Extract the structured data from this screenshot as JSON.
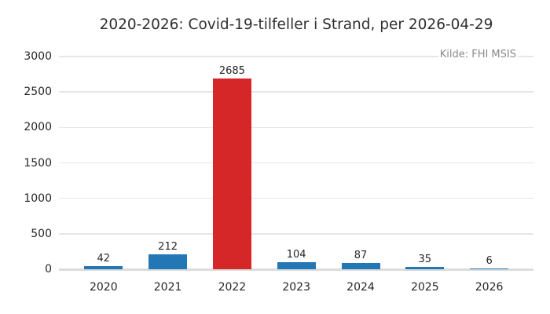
{
  "chart_data": {
    "type": "bar",
    "title": "2020-2026: Covid-19-tilfeller i Strand, per 2026-04-29",
    "annotation": "Kilde: FHI MSIS",
    "categories": [
      "2020",
      "2021",
      "2022",
      "2023",
      "2024",
      "2025",
      "2026"
    ],
    "values": [
      42,
      212,
      2685,
      104,
      87,
      35,
      6
    ],
    "xlabel": "",
    "ylabel": "",
    "ylim": [
      0,
      3000
    ],
    "yticks": [
      0,
      500,
      1000,
      1500,
      2000,
      2500,
      3000
    ],
    "grid": "horizontal",
    "legend": "none",
    "bar_value_labels_shown": true,
    "colors": {
      "bar_default": "#2277b4",
      "bar_highlight": "#d62728",
      "highlight_index": 2,
      "gridline": "#e6e6e6",
      "zero_line": "#dcdcdc",
      "text": "#262626",
      "title_text": "#303030",
      "annotation_text": "#8a8a8a",
      "background": "#ffffff"
    }
  }
}
